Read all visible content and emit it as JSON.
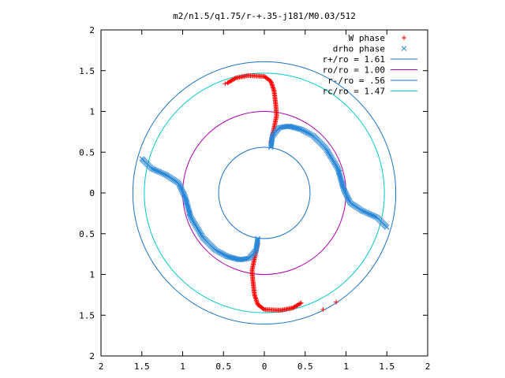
{
  "chart_data": {
    "type": "scatter",
    "title": "m2/n1.5/q1.75/r-+.35-j181/M0.03/512",
    "xlabel": "",
    "ylabel": "",
    "xlim": [
      -2,
      2
    ],
    "ylim": [
      -2,
      2
    ],
    "x_ticks": [
      -2,
      -1.5,
      -1,
      -0.5,
      0,
      0.5,
      1,
      1.5,
      2
    ],
    "x_tick_labels": [
      "2",
      "1.5",
      "1",
      "0.5",
      "0",
      "0.5",
      "1",
      "1.5",
      "2"
    ],
    "y_ticks": [
      2,
      1.5,
      1,
      0.5,
      0,
      -0.5,
      -1,
      -1.5,
      -2
    ],
    "y_tick_labels": [
      "2",
      "1.5",
      "1",
      "0.5",
      "0",
      "0.5",
      "1",
      "1.5",
      "2"
    ],
    "grid": false,
    "legend_position": "top-right",
    "series": [
      {
        "name": "W phase",
        "marker": "+",
        "color": "#ff0000",
        "curves": [
          [
            [
              -0.45,
              1.35
            ],
            [
              -0.35,
              1.41
            ],
            [
              -0.2,
              1.44
            ],
            [
              0.0,
              1.43
            ],
            [
              0.08,
              1.37
            ],
            [
              0.12,
              1.25
            ],
            [
              0.14,
              1.08
            ],
            [
              0.15,
              0.95
            ],
            [
              0.12,
              0.8
            ],
            [
              0.08,
              0.62
            ]
          ],
          [
            [
              0.45,
              -1.35
            ],
            [
              0.35,
              -1.41
            ],
            [
              0.2,
              -1.44
            ],
            [
              0.0,
              -1.43
            ],
            [
              -0.08,
              -1.37
            ],
            [
              -0.12,
              -1.25
            ],
            [
              -0.14,
              -1.08
            ],
            [
              -0.15,
              -0.95
            ],
            [
              -0.12,
              -0.8
            ],
            [
              -0.08,
              -0.62
            ]
          ]
        ],
        "outliers": [
          [
            -0.48,
            1.34
          ],
          [
            0.72,
            -1.43
          ],
          [
            0.88,
            -1.34
          ]
        ]
      },
      {
        "name": "drho phase",
        "marker": "x",
        "color": "#2b88d8",
        "curves": [
          [
            [
              0.08,
              0.56
            ],
            [
              0.1,
              0.7
            ],
            [
              0.18,
              0.8
            ],
            [
              0.3,
              0.82
            ],
            [
              0.45,
              0.78
            ],
            [
              0.6,
              0.7
            ],
            [
              0.75,
              0.55
            ],
            [
              0.9,
              0.3
            ],
            [
              0.97,
              0.05
            ],
            [
              1.05,
              -0.12
            ],
            [
              1.2,
              -0.22
            ],
            [
              1.38,
              -0.3
            ],
            [
              1.5,
              -0.42
            ]
          ],
          [
            [
              -0.08,
              -0.56
            ],
            [
              -0.1,
              -0.7
            ],
            [
              -0.18,
              -0.8
            ],
            [
              -0.3,
              -0.82
            ],
            [
              -0.45,
              -0.78
            ],
            [
              -0.6,
              -0.7
            ],
            [
              -0.75,
              -0.55
            ],
            [
              -0.9,
              -0.3
            ],
            [
              -0.97,
              -0.05
            ],
            [
              -1.05,
              0.12
            ],
            [
              -1.2,
              0.22
            ],
            [
              -1.38,
              0.3
            ],
            [
              -1.5,
              0.42
            ]
          ]
        ],
        "outliers": [
          [
            0.92,
            0.25
          ],
          [
            0.95,
            0.12
          ],
          [
            -0.92,
            -0.25
          ],
          [
            -0.95,
            -0.12
          ]
        ]
      },
      {
        "name": "r+/ro = 1.61",
        "type": "circle",
        "radius": 1.61,
        "color": "#1a73c8"
      },
      {
        "name": "ro/ro = 1.00",
        "type": "circle",
        "radius": 1.0,
        "color": "#b000b0"
      },
      {
        "name": "r-/ro = .56",
        "type": "circle",
        "radius": 0.56,
        "color": "#1a73c8"
      },
      {
        "name": "rc/ro = 1.47",
        "type": "circle",
        "radius": 1.47,
        "color": "#00c8c8"
      }
    ]
  }
}
